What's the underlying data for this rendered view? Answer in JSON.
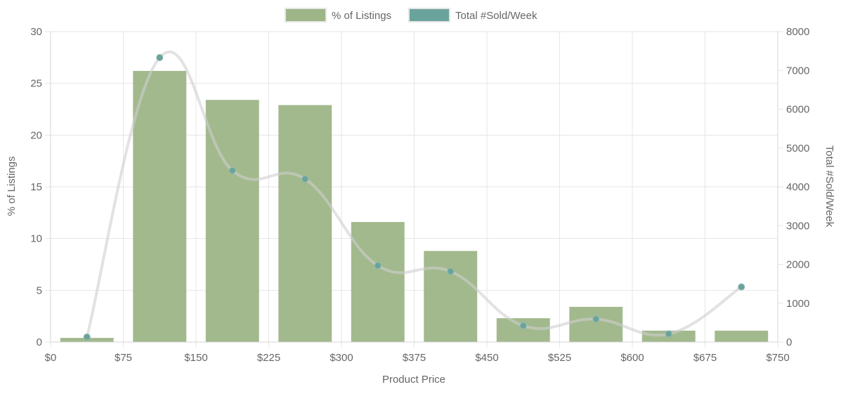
{
  "chart_data": {
    "type": "bar",
    "xlabel": "Product Price",
    "ylabel_left": "% of Listings",
    "ylabel_right": "Total #Sold/Week",
    "x_ticks": [
      "$0",
      "$75",
      "$150",
      "$225",
      "$300",
      "$375",
      "$450",
      "$525",
      "$600",
      "$675",
      "$750"
    ],
    "x_range": [
      0,
      750
    ],
    "bar_width": 55,
    "y_left_range": [
      0,
      30
    ],
    "y_left_ticks": [
      0,
      5,
      10,
      15,
      20,
      25,
      30
    ],
    "y_right_range": [
      0,
      8000
    ],
    "y_right_ticks": [
      0,
      1000,
      2000,
      3000,
      4000,
      5000,
      6000,
      7000,
      8000
    ],
    "grid": true,
    "legend_position": "top-center",
    "series": [
      {
        "name": "% of Listings",
        "type": "bar",
        "axis": "left",
        "color": "#9db587",
        "x": [
          37.5,
          112.5,
          187.5,
          262.5,
          337.5,
          412.5,
          487.5,
          562.5,
          637.5,
          712.5
        ],
        "values": [
          0.4,
          26.2,
          23.4,
          22.9,
          11.6,
          8.8,
          2.3,
          3.4,
          1.1,
          1.1
        ]
      },
      {
        "name": "Total #Sold/Week",
        "type": "line",
        "axis": "right",
        "color": "#6aa39b",
        "line_color": "#e3e3e3",
        "x": [
          37.5,
          112.5,
          187.5,
          262.5,
          337.5,
          412.5,
          487.5,
          562.5,
          637.5,
          712.5
        ],
        "values": [
          130,
          7330,
          4420,
          4200,
          1970,
          1820,
          420,
          590,
          210,
          1420
        ]
      }
    ]
  }
}
